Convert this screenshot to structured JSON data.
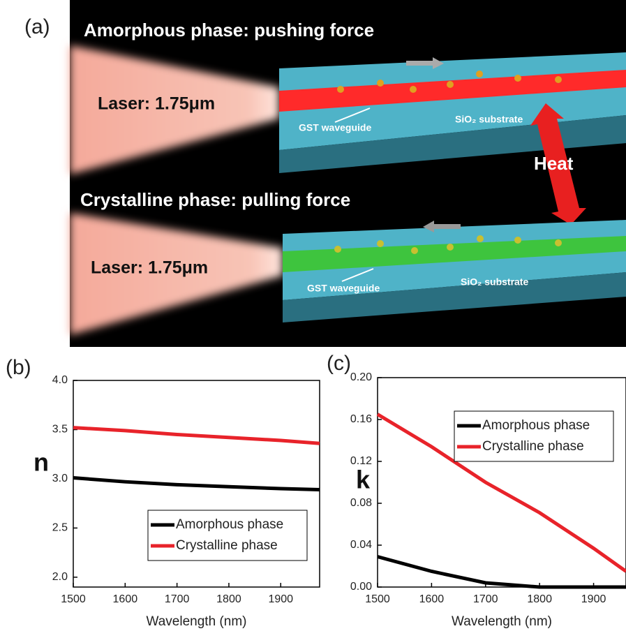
{
  "panel_a": {
    "label": "(a)",
    "top_title": "Amorphous phase: pushing force",
    "top_laser": "Laser: 1.75μm",
    "top_waveguide": "GST waveguide",
    "top_substrate": "SiO₂ substrate",
    "heat": "Heat",
    "bottom_title": "Crystalline phase: pulling force",
    "bottom_laser": "Laser: 1.75μm",
    "bottom_waveguide": "GST waveguide",
    "bottom_substrate": "SiO₂ substrate"
  },
  "chart_data": [
    {
      "type": "line",
      "panel": "(b)",
      "xlabel": "Wavelength (nm)",
      "ylabel": "n",
      "x": [
        1500,
        1600,
        1700,
        1800,
        1900,
        1975
      ],
      "series": [
        {
          "name": "Amorphous phase",
          "color": "#000000",
          "values": [
            3.01,
            2.97,
            2.94,
            2.92,
            2.9,
            2.89
          ]
        },
        {
          "name": "Crystalline phase",
          "color": "#e8232a",
          "values": [
            3.52,
            3.49,
            3.45,
            3.42,
            3.39,
            3.36
          ]
        }
      ],
      "xlim": [
        1500,
        1975
      ],
      "xticks": [
        1500,
        1600,
        1700,
        1800,
        1900
      ],
      "ylim": [
        1.9,
        4.0
      ],
      "yticks": [
        {
          "value": 2,
          "label": "2.0"
        },
        2.5,
        {
          "value": 3,
          "label": "3.0"
        },
        3.5,
        {
          "value": 4,
          "label": "4.0"
        }
      ],
      "legend": "lower right"
    },
    {
      "type": "line",
      "panel": "(c)",
      "xlabel": "Wavelength (nm)",
      "ylabel": "k",
      "x": [
        1500,
        1600,
        1700,
        1800,
        1900,
        1960
      ],
      "series": [
        {
          "name": "Amorphous phase",
          "color": "#000000",
          "values": [
            0.029,
            0.015,
            0.004,
            0,
            0,
            0
          ]
        },
        {
          "name": "Crystalline phase",
          "color": "#e8232a",
          "values": [
            0.165,
            0.134,
            0.1,
            0.071,
            0.037,
            0.015
          ]
        }
      ],
      "xlim": [
        1500,
        1960
      ],
      "xticks": [
        1500,
        1600,
        1700,
        1800,
        1900
      ],
      "ylim": [
        0,
        0.2
      ],
      "yticks": [
        {
          "value": 0,
          "label": "0.00"
        },
        0.04,
        0.08,
        0.12,
        0.16,
        {
          "value": 0.2,
          "label": "0.20"
        }
      ],
      "legend": "upper right"
    }
  ]
}
